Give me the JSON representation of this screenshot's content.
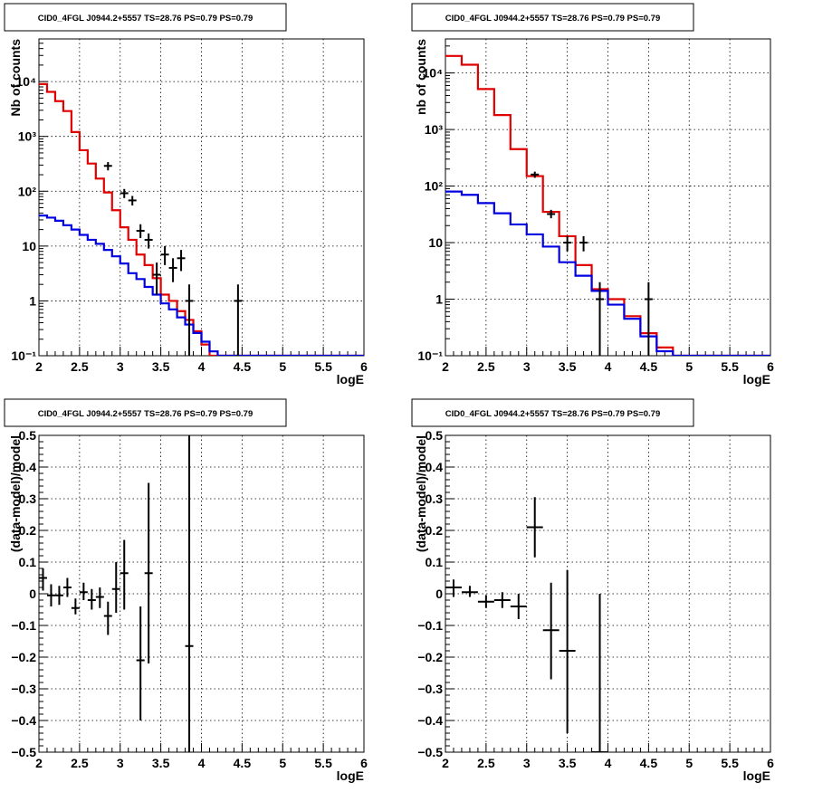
{
  "chart_data": [
    {
      "type": "histogram-step",
      "title": "CID0_4FGL J0944.2+5557 TS=28.76 PS=0.79 PS=0.79",
      "xlabel": "logE",
      "ylabel": "Nb of counts",
      "xlim": [
        2,
        6
      ],
      "ylim": [
        0.1,
        60000
      ],
      "yscale": "log",
      "grid": true,
      "xticks": [
        2,
        2.5,
        3,
        3.5,
        4,
        4.5,
        5,
        5.5,
        6
      ],
      "xtick_labels": [
        "2",
        "2.5",
        "3",
        "3.5",
        "4",
        "4.5",
        "5",
        "5.5",
        "6"
      ],
      "yticks": [
        0.1,
        1,
        10,
        100,
        1000,
        10000
      ],
      "ytick_labels": [
        "10⁻¹",
        "1",
        "10",
        "10²",
        "10³",
        "10⁴"
      ],
      "bin_edges": [
        2.0,
        2.1,
        2.2,
        2.3,
        2.4,
        2.5,
        2.6,
        2.7,
        2.8,
        2.9,
        3.0,
        3.1,
        3.2,
        3.3,
        3.4,
        3.5,
        3.6,
        3.7,
        3.8,
        3.9,
        4.0,
        4.1,
        4.2,
        4.3,
        4.4,
        4.5,
        4.6,
        4.7,
        4.8,
        4.9,
        5.0,
        5.1,
        5.2,
        5.3,
        5.4,
        5.5,
        5.6,
        5.7,
        5.8,
        5.9,
        6.0
      ],
      "series": [
        {
          "color": "#e00000",
          "values": [
            9000,
            6500,
            4400,
            2900,
            1200,
            560,
            320,
            170,
            95,
            45,
            22,
            13,
            7,
            4.5,
            2.6,
            1.3,
            1.0,
            0.65,
            0.45,
            0.28,
            0.16,
            0.1,
            0.1,
            0.1,
            0.1,
            0.1,
            0.1,
            0.1,
            0.1,
            0.1,
            0.1,
            0.1,
            0.1,
            0.1,
            0.1,
            0.1,
            0.1,
            0.1,
            0.1,
            0.1
          ]
        },
        {
          "color": "#0000e0",
          "values": [
            36,
            33,
            29,
            24,
            20,
            16,
            13,
            11,
            8.5,
            6.5,
            4.8,
            3.2,
            2.5,
            1.8,
            1.3,
            0.9,
            0.7,
            0.5,
            0.37,
            0.26,
            0.18,
            0.12,
            0.1,
            0.1,
            0.1,
            0.1,
            0.1,
            0.1,
            0.1,
            0.1,
            0.1,
            0.1,
            0.1,
            0.1,
            0.1,
            0.1,
            0.1,
            0.1,
            0.1,
            0.1
          ]
        }
      ],
      "points": [
        {
          "x": 2.85,
          "y": 290,
          "ylo": 240,
          "yhi": 340
        },
        {
          "x": 3.05,
          "y": 92,
          "ylo": 75,
          "yhi": 110
        },
        {
          "x": 3.15,
          "y": 68,
          "ylo": 55,
          "yhi": 82
        },
        {
          "x": 3.25,
          "y": 19,
          "ylo": 14,
          "yhi": 25
        },
        {
          "x": 3.35,
          "y": 13,
          "ylo": 9,
          "yhi": 17
        },
        {
          "x": 3.45,
          "y": 3,
          "ylo": 1.3,
          "yhi": 5
        },
        {
          "x": 3.55,
          "y": 7,
          "ylo": 4.5,
          "yhi": 10
        },
        {
          "x": 3.65,
          "y": 4,
          "ylo": 2.2,
          "yhi": 6
        },
        {
          "x": 3.75,
          "y": 6,
          "ylo": 3.5,
          "yhi": 8.5
        },
        {
          "x": 3.85,
          "y": 1,
          "ylo": 0.1,
          "yhi": 2
        },
        {
          "x": 4.45,
          "y": 1,
          "ylo": 0.1,
          "yhi": 2
        }
      ]
    },
    {
      "type": "histogram-step",
      "title": "CID0_4FGL J0944.2+5557 TS=28.76 PS=0.79 PS=0.79",
      "xlabel": "logE",
      "ylabel": "nb of counts",
      "xlim": [
        2,
        6
      ],
      "ylim": [
        0.1,
        40000
      ],
      "yscale": "log",
      "grid": true,
      "xticks": [
        2,
        2.5,
        3,
        3.5,
        4,
        4.5,
        5,
        5.5,
        6
      ],
      "xtick_labels": [
        "2",
        "2.5",
        "3",
        "3.5",
        "4",
        "4.5",
        "5",
        "5.5",
        "6"
      ],
      "yticks": [
        0.1,
        1,
        10,
        100,
        1000,
        10000
      ],
      "ytick_labels": [
        "10⁻¹",
        "1",
        "10",
        "10²",
        "10³",
        "10⁴"
      ],
      "bin_edges": [
        2.0,
        2.2,
        2.4,
        2.6,
        2.8,
        3.0,
        3.2,
        3.4,
        3.6,
        3.8,
        4.0,
        4.2,
        4.4,
        4.6,
        4.8,
        5.0,
        5.2,
        5.4,
        5.6,
        5.8,
        6.0
      ],
      "series": [
        {
          "color": "#e00000",
          "values": [
            20000,
            14000,
            5200,
            1800,
            450,
            150,
            35,
            13,
            4,
            1.5,
            1.0,
            0.5,
            0.25,
            0.14,
            0.1,
            0.1,
            0.1,
            0.1,
            0.1,
            0.1
          ]
        },
        {
          "color": "#0000e0",
          "values": [
            80,
            70,
            50,
            33,
            21,
            14,
            8.5,
            4.5,
            2.6,
            1.4,
            0.8,
            0.45,
            0.22,
            0.12,
            0.1,
            0.1,
            0.1,
            0.1,
            0.1,
            0.1
          ]
        }
      ],
      "points": [
        {
          "x": 3.1,
          "y": 160,
          "ylo": 140,
          "yhi": 180
        },
        {
          "x": 3.3,
          "y": 32,
          "ylo": 27,
          "yhi": 38
        },
        {
          "x": 3.5,
          "y": 10,
          "ylo": 7,
          "yhi": 13
        },
        {
          "x": 3.7,
          "y": 10,
          "ylo": 7,
          "yhi": 13
        },
        {
          "x": 3.9,
          "y": 1,
          "ylo": 0.1,
          "yhi": 2
        },
        {
          "x": 4.5,
          "y": 1,
          "ylo": 0.1,
          "yhi": 2
        }
      ]
    },
    {
      "type": "scatter-errorbar",
      "title": "CID0_4FGL J0944.2+5557 TS=28.76 PS=0.79 PS=0.79",
      "xlabel": "logE",
      "ylabel": "(data-model)/model",
      "xlim": [
        2,
        6
      ],
      "ylim": [
        -0.5,
        0.5
      ],
      "grid": true,
      "xticks": [
        2,
        2.5,
        3,
        3.5,
        4,
        4.5,
        5,
        5.5,
        6
      ],
      "xtick_labels": [
        "2",
        "2.5",
        "3",
        "3.5",
        "4",
        "4.5",
        "5",
        "5.5",
        "6"
      ],
      "yticks": [
        -0.5,
        -0.4,
        -0.3,
        -0.2,
        -0.1,
        0,
        0.1,
        0.2,
        0.3,
        0.4,
        0.5
      ],
      "ytick_labels": [
        "−0.5",
        "−0.4",
        "−0.3",
        "−0.2",
        "−0.1",
        "0",
        "0.1",
        "0.2",
        "0.3",
        "0.4",
        "0.5"
      ],
      "xerr": 0.05,
      "points": [
        {
          "x": 2.05,
          "y": 0.05,
          "ylo": 0.01,
          "yhi": 0.08
        },
        {
          "x": 2.15,
          "y": -0.005,
          "ylo": -0.04,
          "yhi": 0.03
        },
        {
          "x": 2.25,
          "y": -0.005,
          "ylo": -0.035,
          "yhi": 0.025
        },
        {
          "x": 2.35,
          "y": 0.02,
          "ylo": -0.01,
          "yhi": 0.05
        },
        {
          "x": 2.45,
          "y": -0.045,
          "ylo": -0.065,
          "yhi": -0.015
        },
        {
          "x": 2.55,
          "y": 0.005,
          "ylo": -0.02,
          "yhi": 0.035
        },
        {
          "x": 2.65,
          "y": -0.02,
          "ylo": -0.05,
          "yhi": 0.015
        },
        {
          "x": 2.75,
          "y": -0.01,
          "ylo": -0.045,
          "yhi": 0.02
        },
        {
          "x": 2.85,
          "y": -0.07,
          "ylo": -0.13,
          "yhi": -0.025
        },
        {
          "x": 2.95,
          "y": 0.015,
          "ylo": -0.06,
          "yhi": 0.1
        },
        {
          "x": 3.05,
          "y": 0.065,
          "ylo": -0.05,
          "yhi": 0.17
        },
        {
          "x": 3.25,
          "y": -0.21,
          "ylo": -0.4,
          "yhi": -0.04
        },
        {
          "x": 3.35,
          "y": 0.065,
          "ylo": -0.22,
          "yhi": 0.35
        },
        {
          "x": 3.85,
          "y": -0.165,
          "ylo": -0.5,
          "yhi": 0.5
        }
      ]
    },
    {
      "type": "scatter-errorbar",
      "title": "CID0_4FGL J0944.2+5557 TS=28.76 PS=0.79 PS=0.79",
      "xlabel": "logE",
      "ylabel": "(data-model)/model",
      "xlim": [
        2,
        6
      ],
      "ylim": [
        -0.5,
        0.5
      ],
      "grid": true,
      "xticks": [
        2,
        2.5,
        3,
        3.5,
        4,
        4.5,
        5,
        5.5,
        6
      ],
      "xtick_labels": [
        "2",
        "2.5",
        "3",
        "3.5",
        "4",
        "4.5",
        "5",
        "5.5",
        "6"
      ],
      "yticks": [
        -0.5,
        -0.4,
        -0.3,
        -0.2,
        -0.1,
        0,
        0.1,
        0.2,
        0.3,
        0.4,
        0.5
      ],
      "ytick_labels": [
        "−0.5",
        "−0.4",
        "−0.3",
        "−0.2",
        "−0.1",
        "0",
        "0.1",
        "0.2",
        "0.3",
        "0.4",
        "0.5"
      ],
      "xerr": 0.1,
      "points": [
        {
          "x": 2.1,
          "y": 0.02,
          "ylo": -0.01,
          "yhi": 0.045
        },
        {
          "x": 2.3,
          "y": 0.005,
          "ylo": -0.01,
          "yhi": 0.025
        },
        {
          "x": 2.5,
          "y": -0.025,
          "ylo": -0.045,
          "yhi": -0.005
        },
        {
          "x": 2.7,
          "y": -0.02,
          "ylo": -0.045,
          "yhi": 0.005
        },
        {
          "x": 2.9,
          "y": -0.04,
          "ylo": -0.08,
          "yhi": 0.0
        },
        {
          "x": 3.1,
          "y": 0.21,
          "ylo": 0.115,
          "yhi": 0.305
        },
        {
          "x": 3.3,
          "y": -0.115,
          "ylo": -0.27,
          "yhi": 0.035
        },
        {
          "x": 3.5,
          "y": -0.18,
          "ylo": -0.44,
          "yhi": 0.075
        },
        {
          "x": 3.9,
          "y": -0.5,
          "ylo": -0.5,
          "yhi": 0.0
        }
      ]
    }
  ]
}
